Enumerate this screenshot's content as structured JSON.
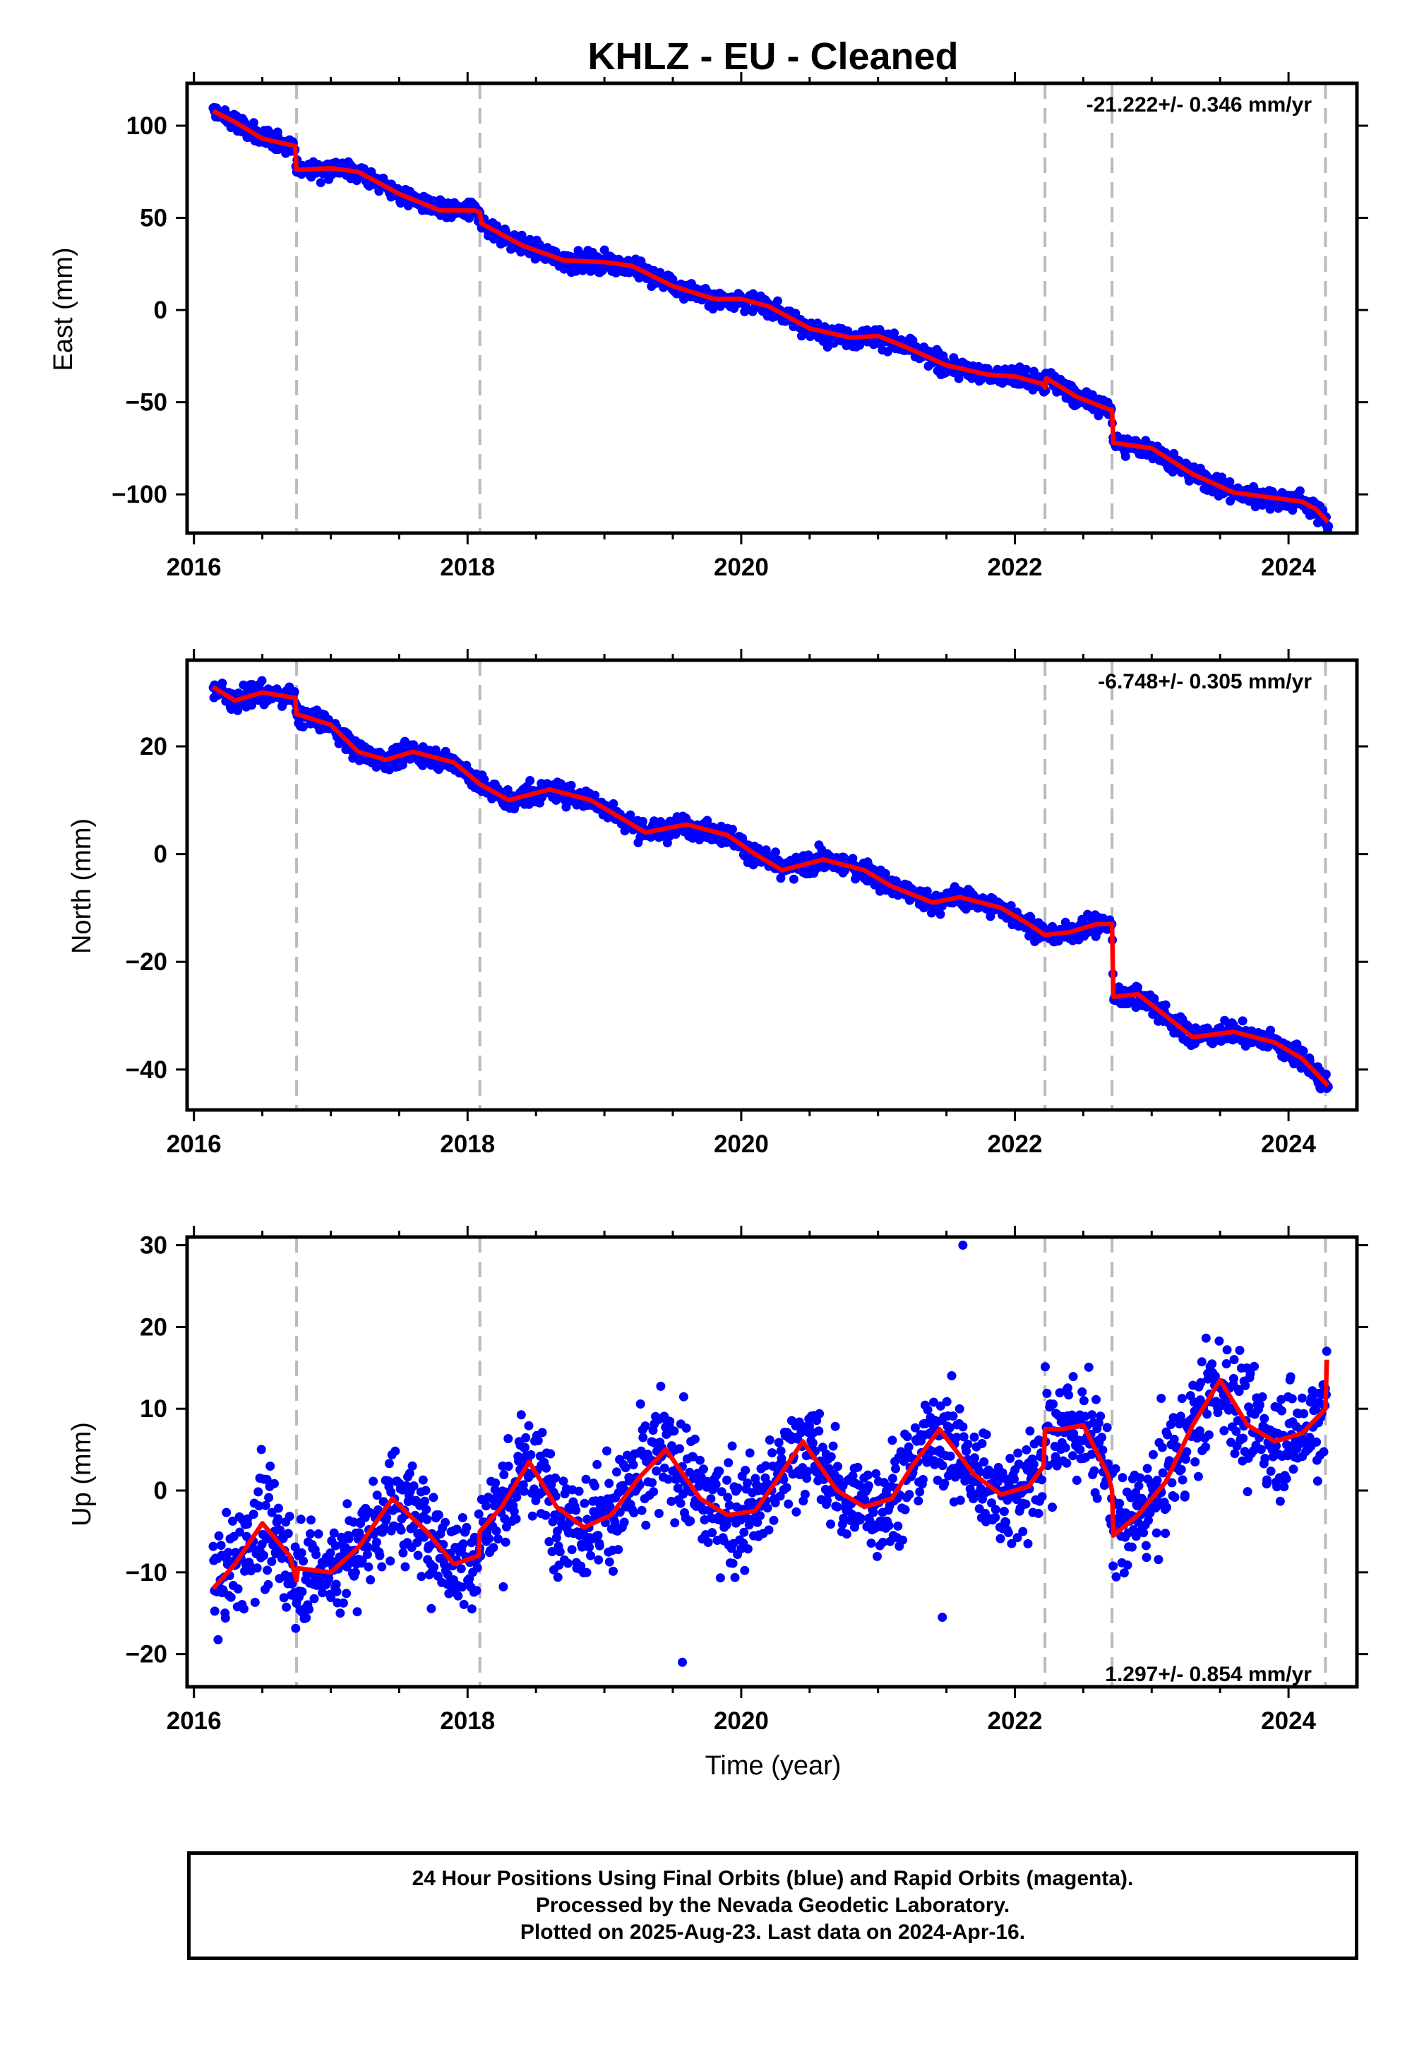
{
  "chart_data": {
    "type": "scatter",
    "title": "KHLZ  - EU - Cleaned",
    "xlabel": "Time (year)",
    "xlim": [
      2015.95,
      2024.5
    ],
    "xticks": [
      2016,
      2018,
      2020,
      2022,
      2024
    ],
    "xtick_labels": [
      "2016",
      "2018",
      "2020",
      "2022",
      "2024"
    ],
    "offset_lines": [
      2016.75,
      2018.09,
      2022.22,
      2022.71,
      2024.27
    ],
    "colors": {
      "data": "#0000ff",
      "model": "#ff0000",
      "offset_line": "#bbbbbb",
      "frame": "#000000"
    },
    "panels": [
      {
        "name": "east",
        "ylabel": "East (mm)",
        "ylim": [
          -121,
          123
        ],
        "yticks": [
          100,
          50,
          0,
          -50,
          -100
        ],
        "ytick_labels": [
          "100",
          "50",
          "0",
          "−50",
          "−100"
        ],
        "rate_text": "-21.222+/- 0.346 mm/yr",
        "rate_pos": "top-right",
        "model": [
          [
            2016.14,
            108
          ],
          [
            2016.3,
            102
          ],
          [
            2016.5,
            93
          ],
          [
            2016.74,
            89
          ],
          [
            2016.75,
            76
          ],
          [
            2017.0,
            77
          ],
          [
            2017.2,
            75
          ],
          [
            2017.5,
            63
          ],
          [
            2017.8,
            54
          ],
          [
            2018.05,
            54
          ],
          [
            2018.09,
            53
          ],
          [
            2018.1,
            47
          ],
          [
            2018.4,
            35
          ],
          [
            2018.7,
            27
          ],
          [
            2019.0,
            26
          ],
          [
            2019.2,
            24
          ],
          [
            2019.5,
            13
          ],
          [
            2019.8,
            6
          ],
          [
            2020.0,
            6
          ],
          [
            2020.2,
            2
          ],
          [
            2020.5,
            -10
          ],
          [
            2020.8,
            -15
          ],
          [
            2021.0,
            -14
          ],
          [
            2021.2,
            -20
          ],
          [
            2021.5,
            -30
          ],
          [
            2021.8,
            -35
          ],
          [
            2022.0,
            -36
          ],
          [
            2022.2,
            -40
          ],
          [
            2022.22,
            -42
          ],
          [
            2022.23,
            -37
          ],
          [
            2022.45,
            -47
          ],
          [
            2022.69,
            -54
          ],
          [
            2022.71,
            -54
          ],
          [
            2022.72,
            -72
          ],
          [
            2023.0,
            -75
          ],
          [
            2023.3,
            -89
          ],
          [
            2023.6,
            -99
          ],
          [
            2023.9,
            -102
          ],
          [
            2024.1,
            -104
          ],
          [
            2024.2,
            -108
          ],
          [
            2024.29,
            -115
          ]
        ],
        "scatter_noise": 3.5
      },
      {
        "name": "north",
        "ylabel": "North (mm)",
        "ylim": [
          -47.5,
          36
        ],
        "yticks": [
          20,
          0,
          -20,
          -40
        ],
        "ytick_labels": [
          "20",
          "0",
          "−20",
          "−40"
        ],
        "rate_text": "-6.748+/- 0.305 mm/yr",
        "rate_pos": "top-right",
        "model": [
          [
            2016.14,
            31
          ],
          [
            2016.3,
            28.5
          ],
          [
            2016.5,
            30
          ],
          [
            2016.74,
            29
          ],
          [
            2016.75,
            26
          ],
          [
            2017.0,
            24
          ],
          [
            2017.2,
            19
          ],
          [
            2017.4,
            17.5
          ],
          [
            2017.6,
            19
          ],
          [
            2017.9,
            17
          ],
          [
            2018.09,
            13
          ],
          [
            2018.3,
            10
          ],
          [
            2018.6,
            12
          ],
          [
            2018.9,
            10
          ],
          [
            2019.1,
            7
          ],
          [
            2019.3,
            4
          ],
          [
            2019.6,
            5.5
          ],
          [
            2019.9,
            3.5
          ],
          [
            2020.1,
            0
          ],
          [
            2020.3,
            -3
          ],
          [
            2020.6,
            -1
          ],
          [
            2020.9,
            -3
          ],
          [
            2021.1,
            -6
          ],
          [
            2021.4,
            -9
          ],
          [
            2021.6,
            -8
          ],
          [
            2021.9,
            -10
          ],
          [
            2022.1,
            -13
          ],
          [
            2022.22,
            -15
          ],
          [
            2022.4,
            -14.5
          ],
          [
            2022.6,
            -13
          ],
          [
            2022.71,
            -13
          ],
          [
            2022.72,
            -26.5
          ],
          [
            2022.9,
            -26
          ],
          [
            2023.1,
            -30
          ],
          [
            2023.3,
            -34
          ],
          [
            2023.6,
            -33
          ],
          [
            2023.9,
            -35
          ],
          [
            2024.1,
            -38
          ],
          [
            2024.29,
            -43
          ]
        ],
        "scatter_noise": 1.3
      },
      {
        "name": "up",
        "ylabel": "Up (mm)",
        "ylim": [
          -24,
          31
        ],
        "yticks": [
          30,
          20,
          10,
          0,
          -10,
          -20
        ],
        "ytick_labels": [
          "30",
          "20",
          "10",
          "0",
          "−10",
          "−20"
        ],
        "rate_text": "1.297+/- 0.854 mm/yr",
        "rate_pos": "bottom-right",
        "model": [
          [
            2016.14,
            -12
          ],
          [
            2016.3,
            -9
          ],
          [
            2016.5,
            -4
          ],
          [
            2016.7,
            -8
          ],
          [
            2016.75,
            -11
          ],
          [
            2016.76,
            -9.5
          ],
          [
            2017.0,
            -10
          ],
          [
            2017.2,
            -7
          ],
          [
            2017.45,
            -1
          ],
          [
            2017.7,
            -5
          ],
          [
            2017.9,
            -9
          ],
          [
            2018.08,
            -8
          ],
          [
            2018.09,
            -5
          ],
          [
            2018.25,
            -2
          ],
          [
            2018.45,
            3.5
          ],
          [
            2018.65,
            -2
          ],
          [
            2018.85,
            -4.5
          ],
          [
            2019.05,
            -3
          ],
          [
            2019.25,
            1.5
          ],
          [
            2019.45,
            5
          ],
          [
            2019.7,
            -1
          ],
          [
            2019.9,
            -3
          ],
          [
            2020.1,
            -2.5
          ],
          [
            2020.25,
            1
          ],
          [
            2020.45,
            6
          ],
          [
            2020.7,
            0
          ],
          [
            2020.9,
            -2
          ],
          [
            2021.1,
            -1
          ],
          [
            2021.25,
            3
          ],
          [
            2021.45,
            7.5
          ],
          [
            2021.7,
            2
          ],
          [
            2021.9,
            -0.5
          ],
          [
            2022.1,
            0.5
          ],
          [
            2022.21,
            3
          ],
          [
            2022.22,
            7.5
          ],
          [
            2022.35,
            7.5
          ],
          [
            2022.5,
            8
          ],
          [
            2022.68,
            2
          ],
          [
            2022.71,
            0
          ],
          [
            2022.72,
            -5.5
          ],
          [
            2022.9,
            -3
          ],
          [
            2023.1,
            1
          ],
          [
            2023.3,
            8
          ],
          [
            2023.5,
            13.5
          ],
          [
            2023.7,
            8
          ],
          [
            2023.9,
            6
          ],
          [
            2024.1,
            7
          ],
          [
            2024.27,
            10
          ],
          [
            2024.28,
            16
          ]
        ],
        "scatter_noise": 4.5,
        "outliers": [
          [
            2021.62,
            30
          ],
          [
            2019.57,
            -21
          ],
          [
            2021.47,
            -15.5
          ]
        ]
      }
    ]
  },
  "footer": {
    "line1": "24 Hour Positions Using Final Orbits (blue) and Rapid Orbits (magenta).",
    "line2": "Processed by the Nevada Geodetic Laboratory.",
    "line3": "Plotted on 2025-Aug-23. Last data on 2024-Apr-16."
  }
}
